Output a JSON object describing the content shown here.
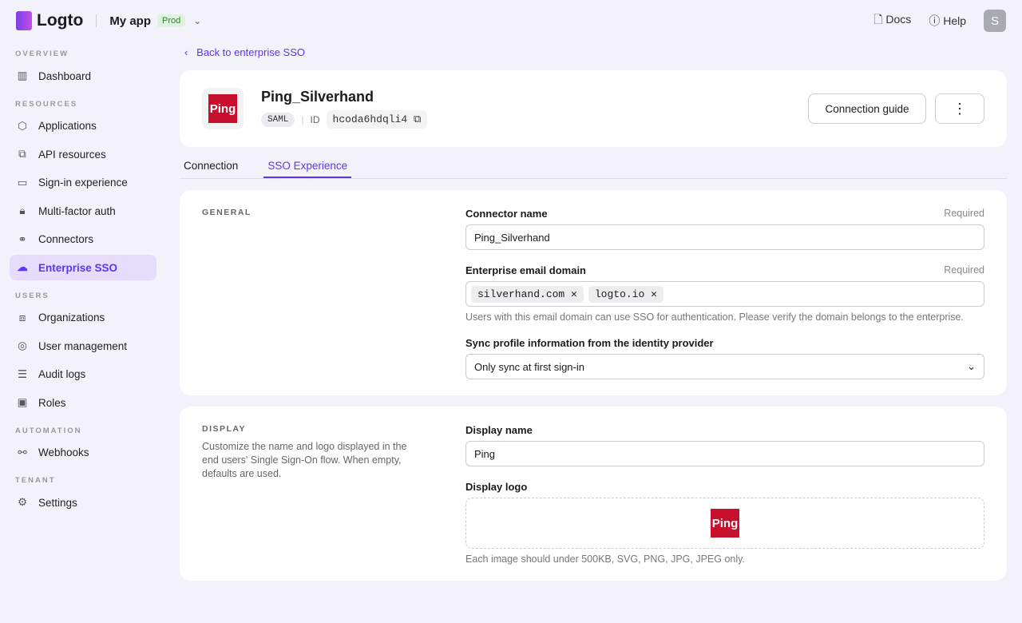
{
  "topbar": {
    "brand": "Logto",
    "app": "My app",
    "env": "Prod",
    "docs": "Docs",
    "help": "Help",
    "avatar": "S"
  },
  "sidebar": {
    "sections": [
      {
        "title": "OVERVIEW",
        "items": [
          {
            "label": "Dashboard",
            "icon": "▥"
          }
        ]
      },
      {
        "title": "RESOURCES",
        "items": [
          {
            "label": "Applications",
            "icon": "⬡"
          },
          {
            "label": "API resources",
            "icon": "⧉"
          },
          {
            "label": "Sign-in experience",
            "icon": "▭"
          },
          {
            "label": "Multi-factor auth",
            "icon": "🔒︎"
          },
          {
            "label": "Connectors",
            "icon": "⚭"
          },
          {
            "label": "Enterprise SSO",
            "icon": "☁"
          }
        ]
      },
      {
        "title": "USERS",
        "items": [
          {
            "label": "Organizations",
            "icon": "⧈"
          },
          {
            "label": "User management",
            "icon": "◎"
          },
          {
            "label": "Audit logs",
            "icon": "☰"
          },
          {
            "label": "Roles",
            "icon": "▣"
          }
        ]
      },
      {
        "title": "AUTOMATION",
        "items": [
          {
            "label": "Webhooks",
            "icon": "⚯"
          }
        ]
      },
      {
        "title": "TENANT",
        "items": [
          {
            "label": "Settings",
            "icon": "⚙"
          }
        ]
      }
    ],
    "active": "Enterprise SSO"
  },
  "back": "Back to enterprise SSO",
  "connector": {
    "logo_text": "Ping",
    "name": "Ping_Silverhand",
    "type": "SAML",
    "id_label": "ID",
    "id": "hcoda6hdqli4",
    "guide": "Connection guide",
    "more": "⋮"
  },
  "tabs": [
    "Connection",
    "SSO Experience"
  ],
  "general": {
    "title": "GENERAL",
    "name_label": "Connector name",
    "required": "Required",
    "name_value": "Ping_Silverhand",
    "domain_label": "Enterprise email domain",
    "domains": [
      "silverhand.com",
      "logto.io"
    ],
    "domain_hint": "Users with this email domain can use SSO for authentication. Please verify the domain belongs to the enterprise.",
    "sync_label": "Sync profile information from the identity provider",
    "sync_value": "Only sync at first sign-in"
  },
  "display": {
    "title": "DISPLAY",
    "desc": "Customize the name and logo displayed in the end users' Single Sign-On flow. When empty, defaults are used.",
    "name_label": "Display name",
    "name_value": "Ping",
    "logo_label": "Display logo",
    "logo_hint": "Each image should under 500KB, SVG, PNG, JPG, JPEG only."
  }
}
